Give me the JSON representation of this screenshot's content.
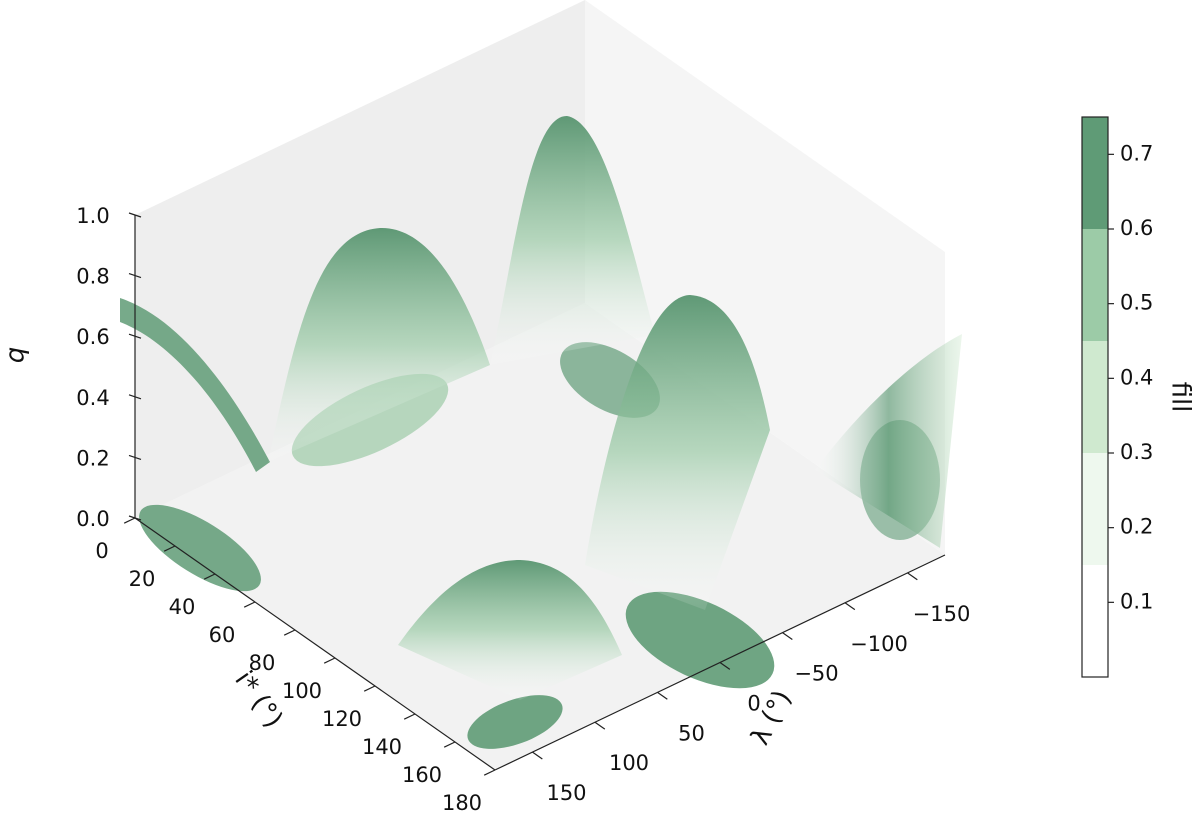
{
  "chart_data": {
    "type": "surface3d",
    "xlabel": "i* (°)",
    "ylabel": "λ (°)",
    "zlabel": "q",
    "xlim": [
      0,
      180
    ],
    "xticks": [
      0,
      20,
      40,
      60,
      80,
      100,
      120,
      140,
      160,
      180
    ],
    "ylim": [
      -180,
      180
    ],
    "yticks": [
      {
        "value": -150,
        "label": "−150"
      },
      {
        "value": -100,
        "label": "−100"
      },
      {
        "value": -50,
        "label": "−50"
      },
      0,
      50,
      100,
      150
    ],
    "zlim": [
      0,
      1
    ],
    "zticks": [
      {
        "value": 0,
        "label": "0.0"
      },
      0.2,
      0.4,
      0.6,
      0.8,
      {
        "value": 1,
        "label": "1.0"
      }
    ],
    "colorbar": {
      "label": "fill",
      "levels": [
        0,
        0.15,
        0.3,
        0.45,
        0.6,
        0.75
      ],
      "colors": [
        "#ffffff",
        "#eef8ee",
        "#cfe9cf",
        "#9ccba7",
        "#5f9b76"
      ],
      "ticks": [
        0.1,
        0.2,
        0.3,
        0.4,
        0.5,
        0.6,
        0.7
      ]
    }
  }
}
